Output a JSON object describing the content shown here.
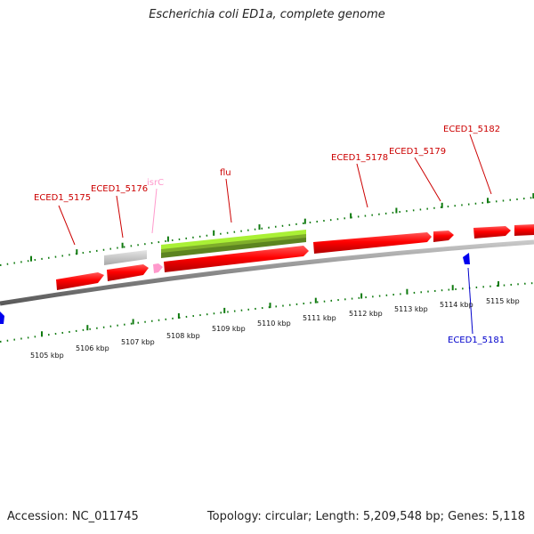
{
  "title": "Escherichia coli ED1a, complete genome",
  "footer": {
    "accession": "Accession: NC_011745",
    "summary": "Topology: circular; Length: 5,209,548 bp; Genes: 5,118"
  },
  "colors": {
    "forward_gene": "#ff0000",
    "reverse_gene": "#0000ee",
    "rna_gene": "#ff99cc",
    "pseudo_gene": "#c0c0c0",
    "repeat_region": "#99ee22",
    "tick": "#0f7a0f",
    "backbone": "#888888"
  },
  "genes": [
    {
      "id": "ECED1_5175",
      "color": "#cc0000"
    },
    {
      "id": "ECED1_5176",
      "color": "#cc0000"
    },
    {
      "id": "isrC",
      "color": "#ff99cc"
    },
    {
      "id": "flu",
      "color": "#cc0000"
    },
    {
      "id": "ECED1_5178",
      "color": "#cc0000"
    },
    {
      "id": "ECED1_5179",
      "color": "#cc0000"
    },
    {
      "id": "ECED1_5182",
      "color": "#cc0000"
    },
    {
      "id": "ECED1_5181",
      "color": "#0000cc"
    }
  ],
  "kbp_labels": [
    "5105 kbp",
    "5106 kbp",
    "5107 kbp",
    "5108 kbp",
    "5109 kbp",
    "5110 kbp",
    "5111 kbp",
    "5112 kbp",
    "5113 kbp",
    "5114 kbp",
    "5115 kbp"
  ]
}
